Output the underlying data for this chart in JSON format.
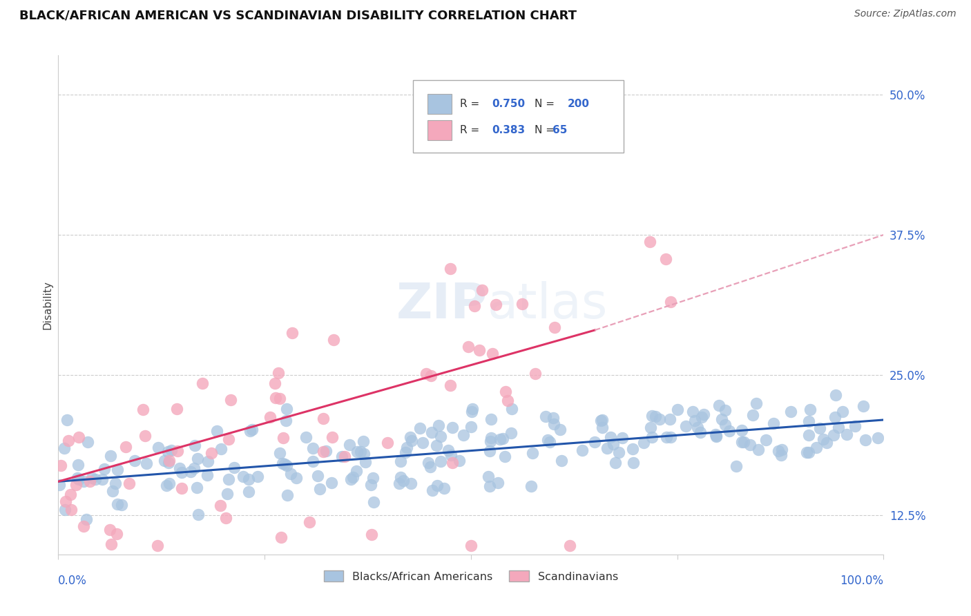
{
  "title": "BLACK/AFRICAN AMERICAN VS SCANDINAVIAN DISABILITY CORRELATION CHART",
  "source": "Source: ZipAtlas.com",
  "ylabel": "Disability",
  "ytick_values": [
    0.125,
    0.25,
    0.375,
    0.5
  ],
  "xlim": [
    0.0,
    1.0
  ],
  "ylim": [
    0.09,
    0.535
  ],
  "blue_scatter_color": "#a8c4e0",
  "pink_scatter_color": "#f4a8bc",
  "blue_line_color": "#2255aa",
  "pink_line_color": "#dd3366",
  "pink_dashed_color": "#e8a0b8",
  "watermark": "ZIPatlas",
  "blue_N": 200,
  "pink_N": 65,
  "blue_line_x": [
    0.0,
    1.0
  ],
  "blue_line_y": [
    0.155,
    0.21
  ],
  "pink_solid_line_x": [
    0.0,
    0.65
  ],
  "pink_solid_line_y": [
    0.155,
    0.29
  ],
  "pink_dashed_line_x": [
    0.65,
    1.0
  ],
  "pink_dashed_line_y": [
    0.29,
    0.375
  ],
  "grid_color": "#cccccc",
  "background_color": "#ffffff",
  "title_fontsize": 13,
  "axis_label_fontsize": 11,
  "tick_fontsize": 12,
  "source_fontsize": 10,
  "legend_r_blue": "0.750",
  "legend_n_blue": "200",
  "legend_r_pink": "0.383",
  "legend_n_pink": "65",
  "right_tick_color": "#3366cc"
}
